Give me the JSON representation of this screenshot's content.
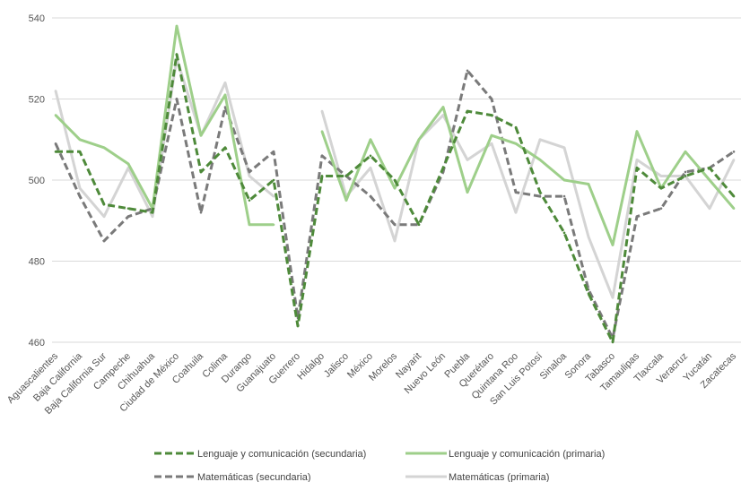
{
  "chart_data": {
    "type": "line",
    "categories": [
      "Aguascalientes",
      "Baja California",
      "Baja California Sur",
      "Campeche",
      "Chihuahua",
      "Ciudad de México",
      "Coahuila",
      "Colima",
      "Durango",
      "Guanajuato",
      "Guerrero",
      "Hidalgo",
      "Jalisco",
      "México",
      "Morelos",
      "Nayarit",
      "Nuevo León",
      "Puebla",
      "Querétaro",
      "Quintana Roo",
      "San Luis Potosí",
      "Sinaloa",
      "Sonora",
      "Tabasco",
      "Tamaulipas",
      "Tlaxcala",
      "Veracruz",
      "Yucatán",
      "Zacatecas"
    ],
    "ylim": [
      460,
      540
    ],
    "yticks": [
      460,
      480,
      500,
      520,
      540
    ],
    "grid": true,
    "legend_position": "bottom",
    "series": [
      {
        "name": "Lenguaje y comunicación (secundaria)",
        "color": "#4e8a3a",
        "dash": true,
        "values": [
          507,
          507,
          494,
          493,
          492,
          531,
          502,
          508,
          495,
          500,
          464,
          501,
          501,
          506,
          500,
          489,
          503,
          517,
          516,
          513,
          497,
          487,
          472,
          460,
          503,
          498,
          501,
          503,
          496
        ]
      },
      {
        "name": "Lenguaje y comunicación (primaria)",
        "color": "#9ecf8a",
        "dash": false,
        "values": [
          516,
          510,
          508,
          504,
          493,
          538,
          511,
          521,
          489,
          489,
          null,
          512,
          495,
          510,
          498,
          510,
          518,
          497,
          511,
          509,
          505,
          500,
          499,
          484,
          512,
          498,
          507,
          500,
          493
        ]
      },
      {
        "name": "Matemáticas (secundaria)",
        "color": "#7a7a7a",
        "dash": true,
        "values": [
          509,
          496,
          485,
          491,
          493,
          520,
          492,
          518,
          502,
          507,
          466,
          506,
          501,
          496,
          489,
          489,
          502,
          527,
          520,
          497,
          496,
          496,
          473,
          461,
          491,
          493,
          502,
          503,
          507
        ]
      },
      {
        "name": "Matemáticas (primaria)",
        "color": "#d4d4d4",
        "dash": false,
        "values": [
          522,
          498,
          491,
          503,
          491,
          530,
          511,
          524,
          501,
          496,
          null,
          517,
          496,
          503,
          485,
          510,
          516,
          505,
          509,
          492,
          510,
          508,
          486,
          471,
          505,
          501,
          501,
          493,
          505
        ]
      }
    ]
  }
}
